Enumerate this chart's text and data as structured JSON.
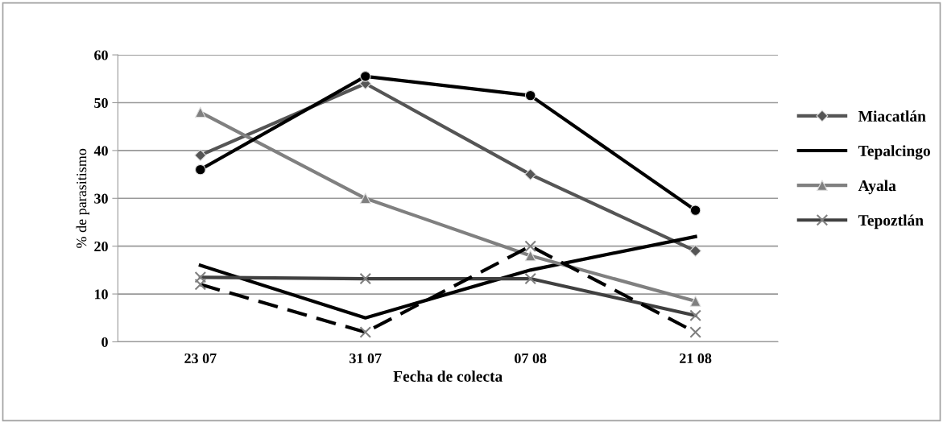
{
  "chart_data": {
    "type": "line",
    "xlabel": "Fecha de colecta",
    "ylabel": "% de parasitismo",
    "categories": [
      "23 07",
      "31 07",
      "07 08",
      "21 08"
    ],
    "ylim": [
      0,
      60
    ],
    "yticks": [
      0,
      10,
      20,
      30,
      40,
      50,
      60
    ],
    "grid": "y",
    "legend": "right",
    "series": [
      {
        "name": "Miacatlán",
        "color": "#555555",
        "marker": "diamond",
        "line_style": "solid",
        "values": [
          39,
          54,
          35,
          19
        ]
      },
      {
        "name": "Tepalcingo",
        "color": "#000000",
        "marker": "none",
        "line_style": "solid",
        "values": [
          16,
          5,
          15,
          22
        ]
      },
      {
        "name": "Ayala",
        "color": "#808080",
        "marker": "triangle",
        "line_style": "solid",
        "values": [
          48,
          30,
          18,
          8.5
        ]
      },
      {
        "name": "Tepoztlán",
        "color": "#404040",
        "marker": "cross",
        "line_style": "solid",
        "values": [
          13.5,
          13.2,
          13.2,
          5.5
        ]
      },
      {
        "color": "#000000",
        "marker": "circle",
        "line_style": "solid",
        "values": [
          36,
          55.5,
          51.5,
          27.5
        ]
      },
      {
        "color": "#000000",
        "marker": "cross",
        "line_style": "dashed",
        "values": [
          12,
          2,
          20,
          2
        ]
      }
    ]
  }
}
